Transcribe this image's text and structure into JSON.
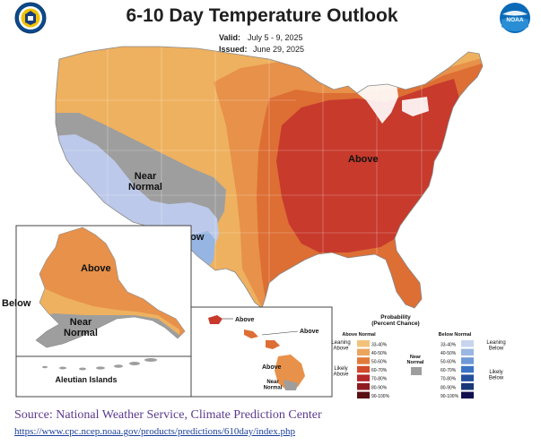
{
  "header": {
    "title": "6-10 Day Temperature Outlook",
    "valid_label": "Valid:",
    "valid_value": "July 5 - 9, 2025",
    "issued_label": "Issued:",
    "issued_value": "June 29, 2025",
    "left_logo": "Department of Commerce seal",
    "right_logo": "NOAA"
  },
  "map": {
    "conus": {
      "above": "Above",
      "near_normal": "Near\nNormal",
      "below": "Below"
    },
    "alaska": {
      "above": "Above",
      "near_normal": "Near\nNormal",
      "below": "Below"
    },
    "aleutian_label": "Aleutian Islands",
    "hawaii": {
      "above_west": "Above",
      "above_mid": "Above",
      "above_big": "Above",
      "near_normal": "Near\nNormal"
    }
  },
  "legend": {
    "title": "Probability\n(Percent Chance)",
    "above_header": "Above Normal",
    "below_header": "Below Normal",
    "near_header": "Near\nNormal",
    "leaning_above": "Leaning\nAbove",
    "likely_above": "Likely\nAbove",
    "leaning_below": "Leaning\nBelow",
    "likely_below": "Likely\nBelow",
    "ranges": [
      "33-40%",
      "40-50%",
      "50-60%",
      "60-70%",
      "70-80%",
      "80-90%",
      "90-100%"
    ],
    "above_colors": [
      "#f2c27b",
      "#eba55c",
      "#e27a3a",
      "#d24a2a",
      "#b5272a",
      "#8e1b20",
      "#5a0f14"
    ],
    "below_colors": [
      "#c8d4ee",
      "#9ab7e3",
      "#6f99d6",
      "#3b74c4",
      "#24509e",
      "#1a3878",
      "#120f4f"
    ],
    "near_color": "#9e9e9e"
  },
  "colors": {
    "above_33_40": "#eeb15f",
    "above_40_50": "#e7914a",
    "above_50_60": "#dd6e34",
    "above_60_70": "#c73a2c",
    "near_normal": "#9e9e9e",
    "below_33_40": "#bcc9ea",
    "below_40_50": "#96b5e2",
    "water": "#ffffff",
    "border": "#b0b0b0"
  },
  "source": {
    "text": "Source: National Weather Service, Climate Prediction Center",
    "url": "https://www.cpc.ncep.noaa.gov/products/predictions/610day/index.php"
  }
}
